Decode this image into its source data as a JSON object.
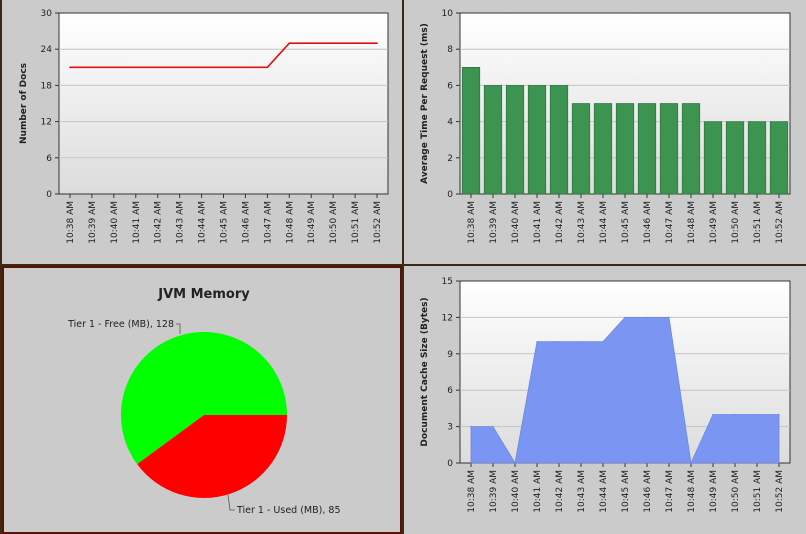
{
  "colors": {
    "docs_line": "#e01010",
    "time_bar": "#3d9450",
    "cache_area": "#7a95f2",
    "pie_free": "#00ff00",
    "pie_used": "#ff0000"
  },
  "chart_data": [
    {
      "id": "docs",
      "type": "line",
      "ylabel": "Number of Docs",
      "categories": [
        "10:38 AM",
        "10:39 AM",
        "10:40 AM",
        "10:41 AM",
        "10:42 AM",
        "10:43 AM",
        "10:44 AM",
        "10:45 AM",
        "10:46 AM",
        "10:47 AM",
        "10:48 AM",
        "10:49 AM",
        "10:50 AM",
        "10:51 AM",
        "10:52 AM"
      ],
      "values": [
        21,
        21,
        21,
        21,
        21,
        21,
        21,
        21,
        21,
        21,
        25,
        25,
        25,
        25,
        25
      ],
      "ylim": [
        0,
        30
      ],
      "yticks": [
        0,
        6,
        12,
        18,
        24,
        30
      ],
      "grid": true
    },
    {
      "id": "time",
      "type": "bar",
      "ylabel": "Average Time Per Request (ms)",
      "categories": [
        "10:38 AM",
        "10:39 AM",
        "10:40 AM",
        "10:41 AM",
        "10:42 AM",
        "10:43 AM",
        "10:44 AM",
        "10:45 AM",
        "10:46 AM",
        "10:47 AM",
        "10:48 AM",
        "10:49 AM",
        "10:50 AM",
        "10:51 AM",
        "10:52 AM"
      ],
      "values": [
        7,
        6,
        6,
        6,
        6,
        5,
        5,
        5,
        5,
        5,
        5,
        4,
        4,
        4,
        4
      ],
      "ylim": [
        0,
        10
      ],
      "yticks": [
        0,
        2,
        4,
        6,
        8,
        10
      ],
      "grid": true
    },
    {
      "id": "jvm",
      "type": "pie",
      "title": "JVM Memory",
      "slices": [
        {
          "label": "Tier 1 - Free (MB), 128",
          "value": 128
        },
        {
          "label": "Tier 1 - Used (MB), 85",
          "value": 85
        }
      ]
    },
    {
      "id": "cache",
      "type": "area",
      "ylabel": "Document Cache Size (Bytes)",
      "categories": [
        "10:38 AM",
        "10:39 AM",
        "10:40 AM",
        "10:41 AM",
        "10:42 AM",
        "10:43 AM",
        "10:44 AM",
        "10:45 AM",
        "10:46 AM",
        "10:47 AM",
        "10:48 AM",
        "10:49 AM",
        "10:50 AM",
        "10:51 AM",
        "10:52 AM"
      ],
      "values": [
        3,
        3,
        0,
        10,
        10,
        10,
        10,
        12,
        12,
        12,
        0,
        4,
        4,
        4,
        4
      ],
      "ylim": [
        0,
        15
      ],
      "yticks": [
        0,
        3,
        6,
        9,
        12,
        15
      ],
      "grid": true
    }
  ]
}
